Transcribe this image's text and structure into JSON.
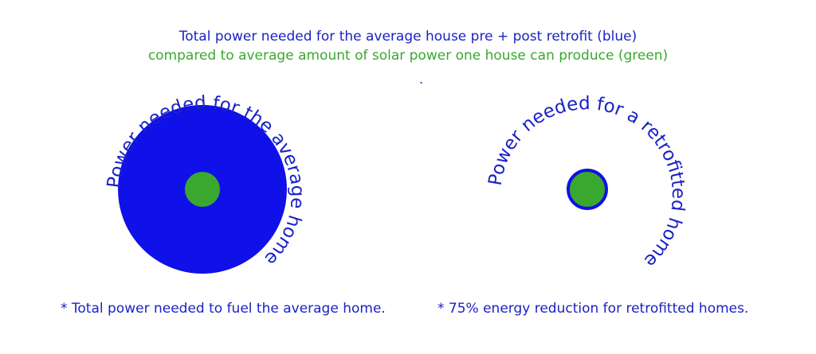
{
  "header": {
    "line1": "Total power needed for the average house pre + post retrofit (blue)",
    "line2": "compared to average amount of solar power one house can produce (green)",
    "dot": "."
  },
  "diagrams": {
    "average_home_label": "Power needed for the average home",
    "retrofit_home_label": "Power needed for a retrofitted home"
  },
  "footnotes": {
    "left": "* Total power needed to fuel the average home.",
    "right": "* 75% energy reduction for retrofitted homes."
  },
  "colors": {
    "blue": "#1010e8",
    "green": "#3aa82e",
    "text_blue": "#1a22c6"
  }
}
